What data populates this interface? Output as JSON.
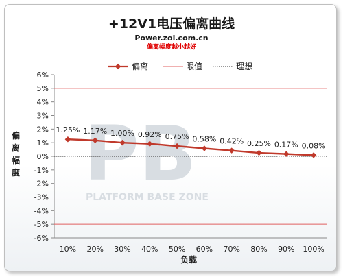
{
  "chart_data": {
    "type": "line",
    "title": "+12V1电压偏离曲线",
    "subtitle": "Power.zol.com.cn",
    "note": "偏离幅度越小越好",
    "xlabel": "负载",
    "ylabel": "偏离幅度",
    "categories": [
      "10%",
      "20%",
      "30%",
      "40%",
      "50%",
      "60%",
      "70%",
      "80%",
      "90%",
      "100%"
    ],
    "ylim": [
      -6,
      6
    ],
    "yticks": [
      "6%",
      "5%",
      "4%",
      "3%",
      "2%",
      "1%",
      "0%",
      "-1%",
      "-2%",
      "-3%",
      "-4%",
      "-5%",
      "-6%"
    ],
    "series": [
      {
        "name": "偏离",
        "values": [
          1.25,
          1.17,
          1.0,
          0.92,
          0.75,
          0.58,
          0.42,
          0.25,
          0.17,
          0.08
        ],
        "labels": [
          "1.25%",
          "1.17%",
          "1.00%",
          "0.92%",
          "0.75%",
          "0.58%",
          "0.42%",
          "0.25%",
          "0.17%",
          "0.08%"
        ],
        "color": "#c0392b"
      },
      {
        "name": "限值",
        "upper": 5,
        "lower": -5,
        "color": "#e06060"
      },
      {
        "name": "理想",
        "value": 0,
        "color": "#333333"
      }
    ],
    "legend_position": "top",
    "grid": false,
    "watermark": "PLATFORM BASE ZONE"
  }
}
